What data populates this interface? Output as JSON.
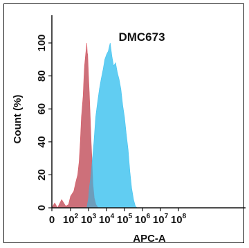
{
  "chart_data": {
    "type": "area",
    "title": "DMC673",
    "xlabel": "APC-A",
    "ylabel": "Count (%)",
    "xscale": "log",
    "xlim": [
      0,
      100000000
    ],
    "ylim": [
      0,
      100
    ],
    "grid": false,
    "x_ticks": [
      {
        "base": "0",
        "exp": ""
      },
      {
        "base": "10",
        "exp": "2"
      },
      {
        "base": "10",
        "exp": "3"
      },
      {
        "base": "10",
        "exp": "4"
      },
      {
        "base": "10",
        "exp": "5"
      },
      {
        "base": "10",
        "exp": "6"
      },
      {
        "base": "10",
        "exp": "7"
      },
      {
        "base": "10",
        "exp": "8"
      }
    ],
    "y_ticks": [
      "0",
      "20",
      "40",
      "60",
      "80",
      "100"
    ],
    "series": [
      {
        "color": "#f05a63",
        "points": [
          [
            0,
            0
          ],
          [
            1,
            3
          ],
          [
            3,
            0
          ],
          [
            10,
            5
          ],
          [
            30,
            1
          ],
          [
            60,
            2
          ],
          [
            100,
            7
          ],
          [
            150,
            10
          ],
          [
            200,
            16
          ],
          [
            250,
            20
          ],
          [
            300,
            28
          ],
          [
            350,
            40
          ],
          [
            400,
            55
          ],
          [
            500,
            68
          ],
          [
            550,
            78
          ],
          [
            600,
            86
          ],
          [
            650,
            90
          ],
          [
            700,
            94
          ],
          [
            750,
            97
          ],
          [
            800,
            100
          ],
          [
            850,
            94
          ],
          [
            900,
            93
          ],
          [
            1000,
            80
          ],
          [
            1100,
            70
          ],
          [
            1250,
            55
          ],
          [
            1400,
            40
          ],
          [
            1600,
            26
          ],
          [
            1800,
            14
          ],
          [
            2100,
            6
          ],
          [
            2600,
            2
          ],
          [
            3500,
            0
          ]
        ]
      },
      {
        "color": "#45c4f0",
        "points": [
          [
            800,
            0
          ],
          [
            1000,
            6
          ],
          [
            1100,
            12
          ],
          [
            1300,
            18
          ],
          [
            1600,
            28
          ],
          [
            2000,
            40
          ],
          [
            2500,
            55
          ],
          [
            3000,
            62
          ],
          [
            4000,
            72
          ],
          [
            5000,
            78
          ],
          [
            6500,
            84
          ],
          [
            8000,
            90
          ],
          [
            10000,
            93
          ],
          [
            12500,
            95
          ],
          [
            16000,
            100
          ],
          [
            20000,
            92
          ],
          [
            25000,
            86
          ],
          [
            32000,
            88
          ],
          [
            40000,
            82
          ],
          [
            50000,
            78
          ],
          [
            63000,
            72
          ],
          [
            80000,
            62
          ],
          [
            100000,
            55
          ],
          [
            125000,
            45
          ],
          [
            160000,
            35
          ],
          [
            200000,
            22
          ],
          [
            250000,
            12
          ],
          [
            320000,
            5
          ],
          [
            400000,
            1
          ],
          [
            500000,
            0
          ]
        ]
      }
    ]
  }
}
